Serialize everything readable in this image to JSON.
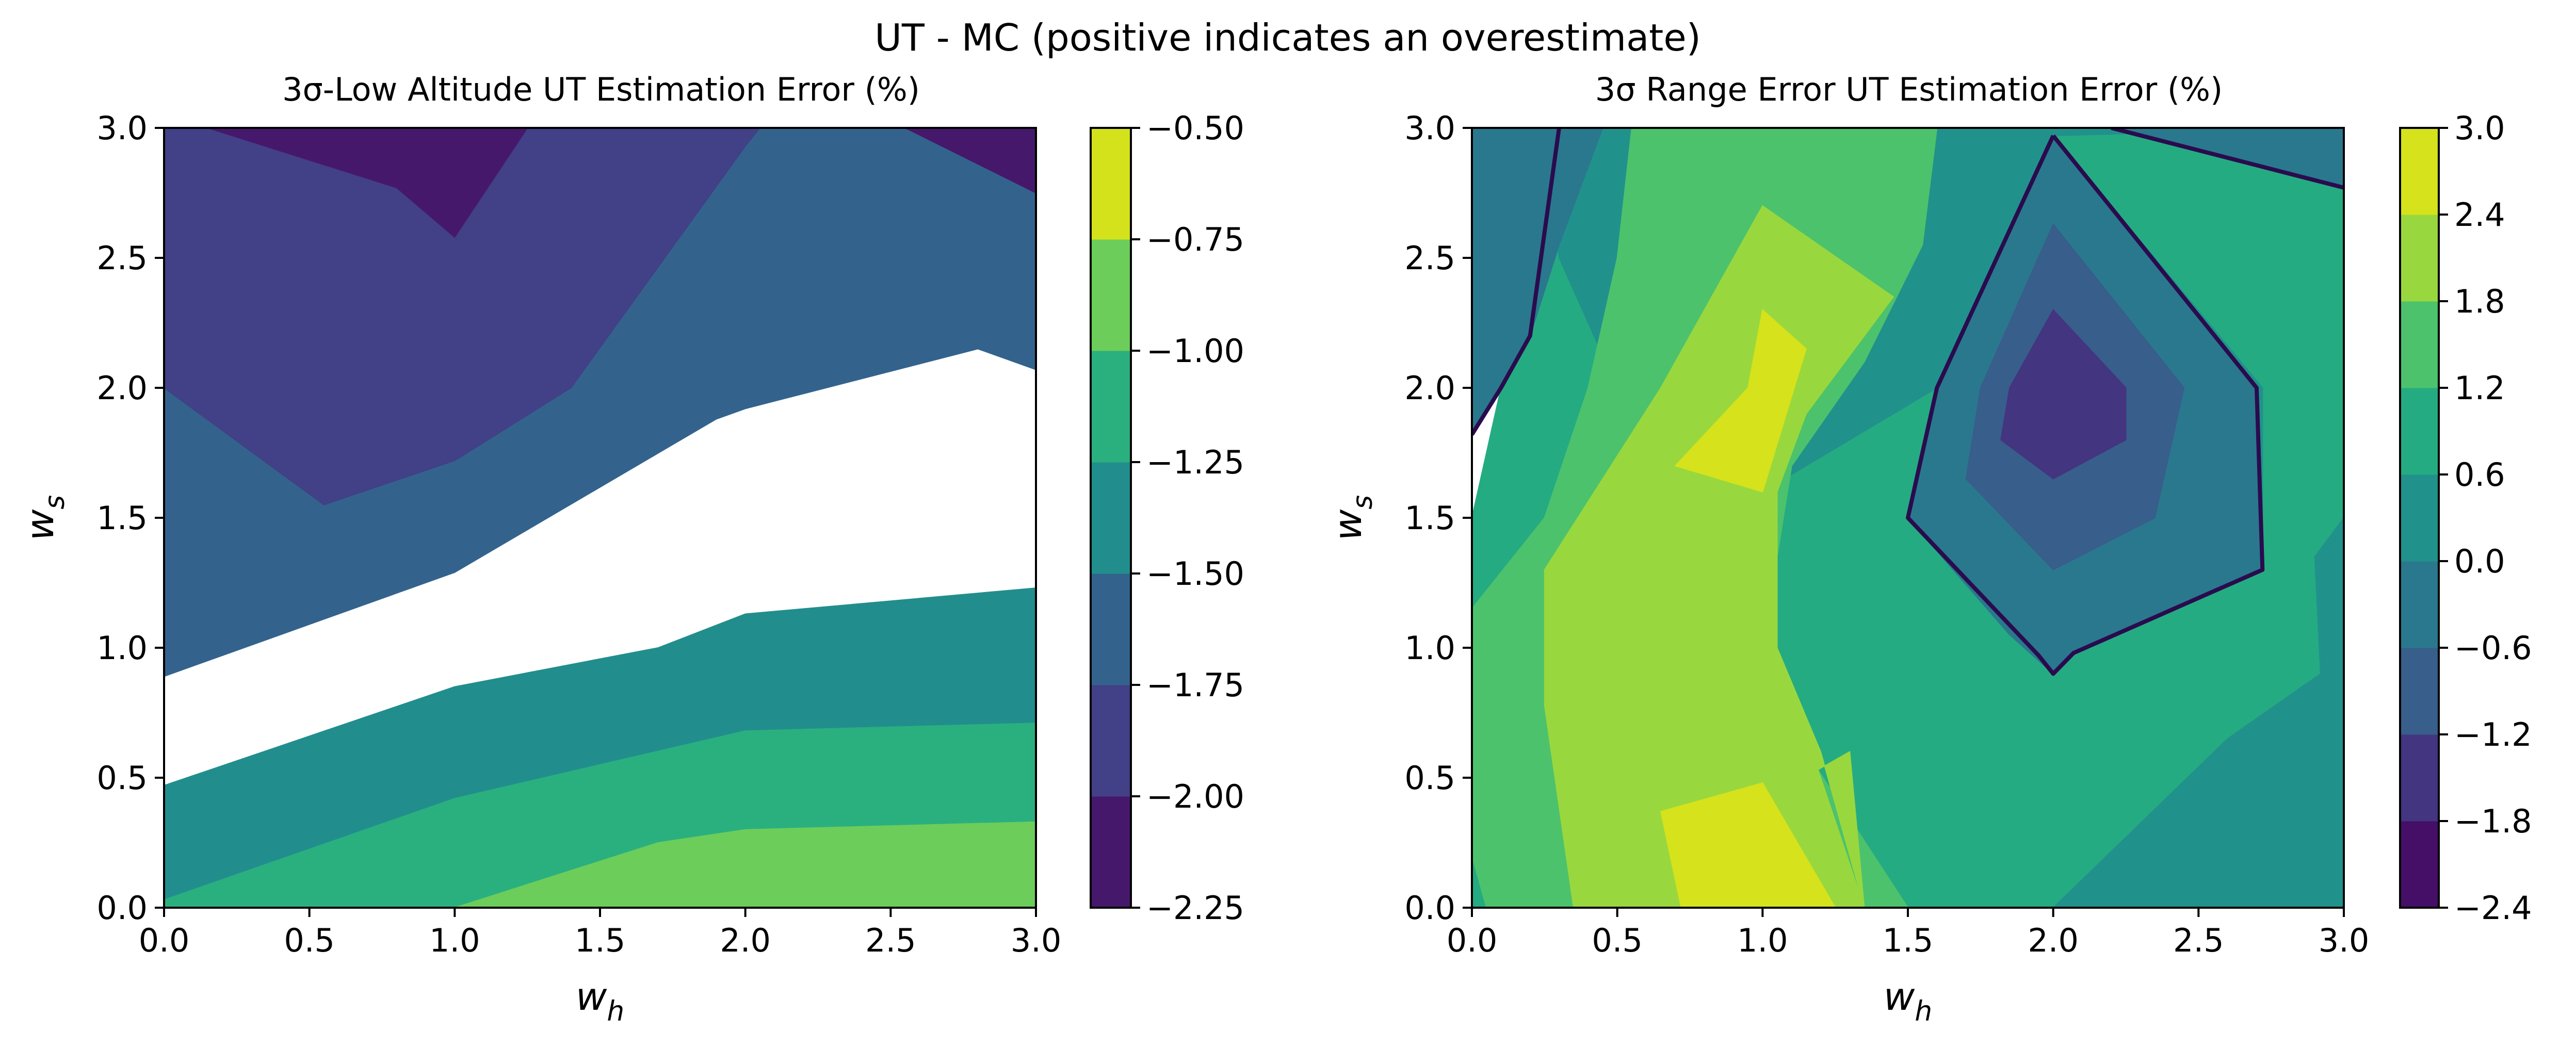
{
  "figure": {
    "suptitle": "UT - MC (positive indicates an overestimate)"
  },
  "chart_data": [
    {
      "type": "contour",
      "title": "3σ-Low Altitude UT Estimation Error (%)",
      "xlabel": "w_h",
      "ylabel": "w_s",
      "xlim": [
        0,
        3
      ],
      "ylim": [
        0,
        3
      ],
      "xticks": [
        "0.0",
        "0.5",
        "1.0",
        "1.5",
        "2.0",
        "2.5",
        "3.0"
      ],
      "yticks": [
        "0.0",
        "0.5",
        "1.0",
        "1.5",
        "2.0",
        "2.5",
        "3.0"
      ],
      "colorbar": {
        "levels": [
          -2.25,
          -2.0,
          -1.75,
          -1.5,
          -1.25,
          -1.0,
          -0.75,
          -0.5
        ],
        "tick_labels": [
          "−2.25",
          "−2.00",
          "−1.75",
          "−1.50",
          "−1.25",
          "−1.00",
          "−0.75",
          "−0.50"
        ],
        "colors": [
          "#46186c",
          "#424086",
          "#33638d",
          "#218e8d",
          "#2ab07f",
          "#6ccd5a",
          "#d3e21b"
        ]
      },
      "regions": [
        {
          "level": -1.375,
          "points": [
            [
              0,
              0.03
            ],
            [
              1.0,
              0.42
            ],
            [
              2.0,
              0.68
            ],
            [
              3.0,
              0.71
            ],
            [
              3.0,
              1.23
            ],
            [
              2.0,
              1.13
            ],
            [
              1.7,
              1.0
            ],
            [
              1.0,
              0.85
            ],
            [
              0,
              0.47
            ]
          ]
        },
        {
          "level": -1.125,
          "points": [
            [
              0,
              0.03
            ],
            [
              1.0,
              0.42
            ],
            [
              2.0,
              0.68
            ],
            [
              3.0,
              0.71
            ],
            [
              3.0,
              0.33
            ],
            [
              2.0,
              0.3
            ],
            [
              1.7,
              0.25
            ],
            [
              1.0,
              0.0
            ],
            [
              0,
              0.0
            ]
          ]
        },
        {
          "level": -0.875,
          "points": [
            [
              1.0,
              0.0
            ],
            [
              1.7,
              0.25
            ],
            [
              2.0,
              0.3
            ],
            [
              3.0,
              0.33
            ],
            [
              3.0,
              0.0
            ]
          ]
        },
        {
          "level": -1.625,
          "points": [
            [
              0,
              2.0
            ],
            [
              0.55,
              1.55
            ],
            [
              1.0,
              1.72
            ],
            [
              1.4,
              2.0
            ],
            [
              2.0,
              2.93
            ],
            [
              2.05,
              3.0
            ],
            [
              3.0,
              3.0
            ],
            [
              3.0,
              2.07
            ],
            [
              2.8,
              2.15
            ],
            [
              2.0,
              1.92
            ],
            [
              1.9,
              1.88
            ],
            [
              1.0,
              1.29
            ],
            [
              0,
              0.89
            ]
          ]
        },
        {
          "level": -1.875,
          "points": [
            [
              0,
              3.0
            ],
            [
              0,
              2.0
            ],
            [
              0.55,
              1.55
            ],
            [
              1.0,
              1.72
            ],
            [
              1.4,
              2.0
            ],
            [
              2.0,
              2.93
            ],
            [
              2.05,
              3.0
            ]
          ]
        },
        {
          "level": -1.625,
          "points": [
            [
              2.05,
              3.0
            ],
            [
              2.55,
              3.0
            ],
            [
              3.0,
              2.75
            ],
            [
              3.0,
              2.4
            ]
          ]
        },
        {
          "level": -2.125,
          "points": [
            [
              0.15,
              3.0
            ],
            [
              1.25,
              3.0
            ],
            [
              1.0,
              2.58
            ],
            [
              0.8,
              2.77
            ]
          ]
        },
        {
          "level": -2.125,
          "points": [
            [
              2.55,
              3.0
            ],
            [
              3.0,
              3.0
            ],
            [
              3.0,
              2.75
            ]
          ]
        }
      ],
      "lines": []
    },
    {
      "type": "contour",
      "title": "3σ Range Error UT Estimation Error (%)",
      "xlabel": "w_h",
      "ylabel": "w_s",
      "xlim": [
        0,
        3
      ],
      "ylim": [
        0,
        3
      ],
      "xticks": [
        "0.0",
        "0.5",
        "1.0",
        "1.5",
        "2.0",
        "2.5",
        "3.0"
      ],
      "yticks": [
        "0.0",
        "0.5",
        "1.0",
        "1.5",
        "2.0",
        "2.5",
        "3.0"
      ],
      "colorbar": {
        "levels": [
          -2.4,
          -1.8,
          -1.2,
          -0.6,
          0.0,
          0.6,
          1.2,
          1.8,
          2.4,
          3.0
        ],
        "tick_labels": [
          "−2.4",
          "−1.8",
          "−1.2",
          "−0.6",
          "0.0",
          "0.6",
          "1.2",
          "1.8",
          "2.4",
          "3.0"
        ],
        "colors": [
          "#450f67",
          "#43357f",
          "#385e8b",
          "#2a788e",
          "#21918c",
          "#25ab82",
          "#4cc26c",
          "#98d83e",
          "#d6e21b"
        ]
      },
      "regions": [
        {
          "level": 0.9,
          "points": [
            [
              0,
              1.5
            ],
            [
              0.1,
              2.0
            ],
            [
              0.2,
              2.2
            ],
            [
              0.25,
              3.0
            ],
            [
              3.0,
              3.0
            ],
            [
              3.0,
              0
            ],
            [
              0,
              0
            ]
          ]
        },
        {
          "level": 0.3,
          "points": [
            [
              0.25,
              3.0
            ],
            [
              0.3,
              2.5
            ],
            [
              0.5,
              2.0
            ],
            [
              1.0,
              1.6
            ],
            [
              1.6,
              2.0
            ],
            [
              1.5,
              1.5
            ],
            [
              1.85,
              1.05
            ],
            [
              2.0,
              0.9
            ],
            [
              2.07,
              0.98
            ],
            [
              2.35,
              1.12
            ],
            [
              2.72,
              1.3
            ],
            [
              2.72,
              2.0
            ],
            [
              2.0,
              2.97
            ],
            [
              3.0,
              3.0
            ]
          ]
        },
        {
          "level": 0.3,
          "points": [
            [
              2.0,
              0
            ],
            [
              2.6,
              0.65
            ],
            [
              2.92,
              0.9
            ],
            [
              2.9,
              1.35
            ],
            [
              3.0,
              1.5
            ],
            [
              3.0,
              0
            ]
          ]
        },
        {
          "level": -0.3,
          "points": [
            [
              0,
              3.0
            ],
            [
              0,
              1.82
            ],
            [
              0.1,
              2.0
            ],
            [
              0.2,
              2.2
            ],
            [
              0.3,
              2.55
            ],
            [
              0.45,
              3.0
            ]
          ]
        },
        {
          "level": -0.3,
          "points": [
            [
              2.0,
              2.97
            ],
            [
              2.7,
              2.0
            ],
            [
              2.72,
              1.3
            ],
            [
              2.35,
              1.12
            ],
            [
              2.07,
              0.98
            ],
            [
              2.0,
              0.9
            ],
            [
              1.85,
              1.05
            ],
            [
              1.5,
              1.5
            ],
            [
              1.6,
              2.0
            ]
          ]
        },
        {
          "level": -0.3,
          "points": [
            [
              2.2,
              3.0
            ],
            [
              3.0,
              3.0
            ],
            [
              3.0,
              2.77
            ]
          ]
        },
        {
          "level": -0.9,
          "points": [
            [
              2.0,
              2.63
            ],
            [
              2.45,
              2.0
            ],
            [
              2.35,
              1.5
            ],
            [
              2.0,
              1.3
            ],
            [
              1.7,
              1.65
            ],
            [
              1.75,
              2.0
            ]
          ]
        },
        {
          "level": -1.5,
          "points": [
            [
              2.0,
              2.3
            ],
            [
              2.25,
              2.0
            ],
            [
              2.25,
              1.8
            ],
            [
              2.0,
              1.65
            ],
            [
              1.82,
              1.8
            ],
            [
              1.85,
              2.0
            ]
          ]
        },
        {
          "level": 1.5,
          "points": [
            [
              0,
              0.2
            ],
            [
              0,
              1.15
            ],
            [
              0.25,
              1.5
            ],
            [
              0.4,
              2.0
            ],
            [
              0.5,
              2.5
            ],
            [
              0.55,
              3.0
            ],
            [
              1.6,
              3.0
            ],
            [
              1.55,
              2.55
            ],
            [
              1.35,
              2.1
            ],
            [
              1.1,
              1.7
            ],
            [
              1.0,
              1.0
            ],
            [
              1.15,
              0.6
            ],
            [
              1.5,
              0
            ],
            [
              0.05,
              0
            ]
          ]
        },
        {
          "level": 2.1,
          "points": [
            [
              0.35,
              0
            ],
            [
              0.25,
              0.78
            ],
            [
              0.25,
              1.3
            ],
            [
              0.9,
              1.0
            ],
            [
              0.25,
              1.3
            ],
            [
              0.65,
              2.0
            ],
            [
              1.0,
              2.7
            ],
            [
              1.45,
              2.35
            ],
            [
              1.15,
              1.9
            ],
            [
              1.05,
              1.6
            ],
            [
              1.05,
              1.0
            ],
            [
              1.2,
              0.6
            ],
            [
              1.35,
              0
            ],
            [
              1.3,
              0.6
            ]
          ]
        },
        {
          "level": 2.1,
          "points": [
            [
              0.25,
              0.78
            ],
            [
              0.9,
              1.0
            ],
            [
              1.05,
              1.0
            ],
            [
              1.35,
              0
            ],
            [
              0.35,
              0
            ]
          ]
        },
        {
          "level": 2.7,
          "points": [
            [
              0.7,
              1.7
            ],
            [
              0.95,
              2.0
            ],
            [
              1.0,
              2.3
            ],
            [
              1.15,
              2.15
            ],
            [
              1.0,
              1.6
            ]
          ]
        },
        {
          "level": 2.7,
          "points": [
            [
              0.65,
              0.37
            ],
            [
              1.0,
              0.48
            ],
            [
              1.25,
              0
            ],
            [
              0.72,
              0
            ]
          ]
        }
      ],
      "lines": [
        {
          "level": -0.6,
          "points": [
            [
              0,
              1.82
            ],
            [
              0.1,
              2.0
            ],
            [
              0.2,
              2.2
            ],
            [
              0.3,
              3.0
            ]
          ]
        },
        {
          "level": -0.6,
          "points": [
            [
              2.0,
              2.97
            ],
            [
              2.7,
              2.0
            ],
            [
              2.72,
              1.3
            ],
            [
              2.07,
              0.98
            ],
            [
              2.0,
              0.9
            ],
            [
              1.95,
              0.97
            ],
            [
              1.5,
              1.5
            ],
            [
              1.6,
              2.0
            ],
            [
              2.0,
              2.97
            ]
          ]
        },
        {
          "level": -0.6,
          "points": [
            [
              2.2,
              3.0
            ],
            [
              3.0,
              2.77
            ]
          ]
        }
      ]
    }
  ]
}
